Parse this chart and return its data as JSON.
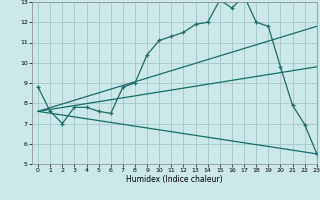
{
  "xlabel": "Humidex (Indice chaleur)",
  "ylabel": "",
  "xlim": [
    -0.5,
    23
  ],
  "ylim": [
    5,
    13
  ],
  "xticks": [
    0,
    1,
    2,
    3,
    4,
    5,
    6,
    7,
    8,
    9,
    10,
    11,
    12,
    13,
    14,
    15,
    16,
    17,
    18,
    19,
    20,
    21,
    22,
    23
  ],
  "yticks": [
    5,
    6,
    7,
    8,
    9,
    10,
    11,
    12,
    13
  ],
  "bg_color": "#cce8e8",
  "grid_color": "#aacccc",
  "line_color": "#1a6e6a",
  "line1_x": [
    0,
    1,
    2,
    3,
    4,
    5,
    6,
    7,
    8,
    9,
    10,
    11,
    12,
    13,
    14,
    15,
    16,
    17,
    18,
    19,
    20,
    21,
    22,
    23
  ],
  "line1_y": [
    8.8,
    7.6,
    7.0,
    7.8,
    7.8,
    7.6,
    7.5,
    8.8,
    9.0,
    10.4,
    11.1,
    11.3,
    11.5,
    11.9,
    12.0,
    13.1,
    12.7,
    13.3,
    12.0,
    11.8,
    9.8,
    7.9,
    6.95,
    5.5
  ],
  "line2_x": [
    0,
    23
  ],
  "line2_y": [
    7.6,
    11.8
  ],
  "line3_x": [
    0,
    23
  ],
  "line3_y": [
    7.6,
    9.8
  ],
  "line4_x": [
    0,
    23
  ],
  "line4_y": [
    7.6,
    5.5
  ],
  "marker": "+"
}
